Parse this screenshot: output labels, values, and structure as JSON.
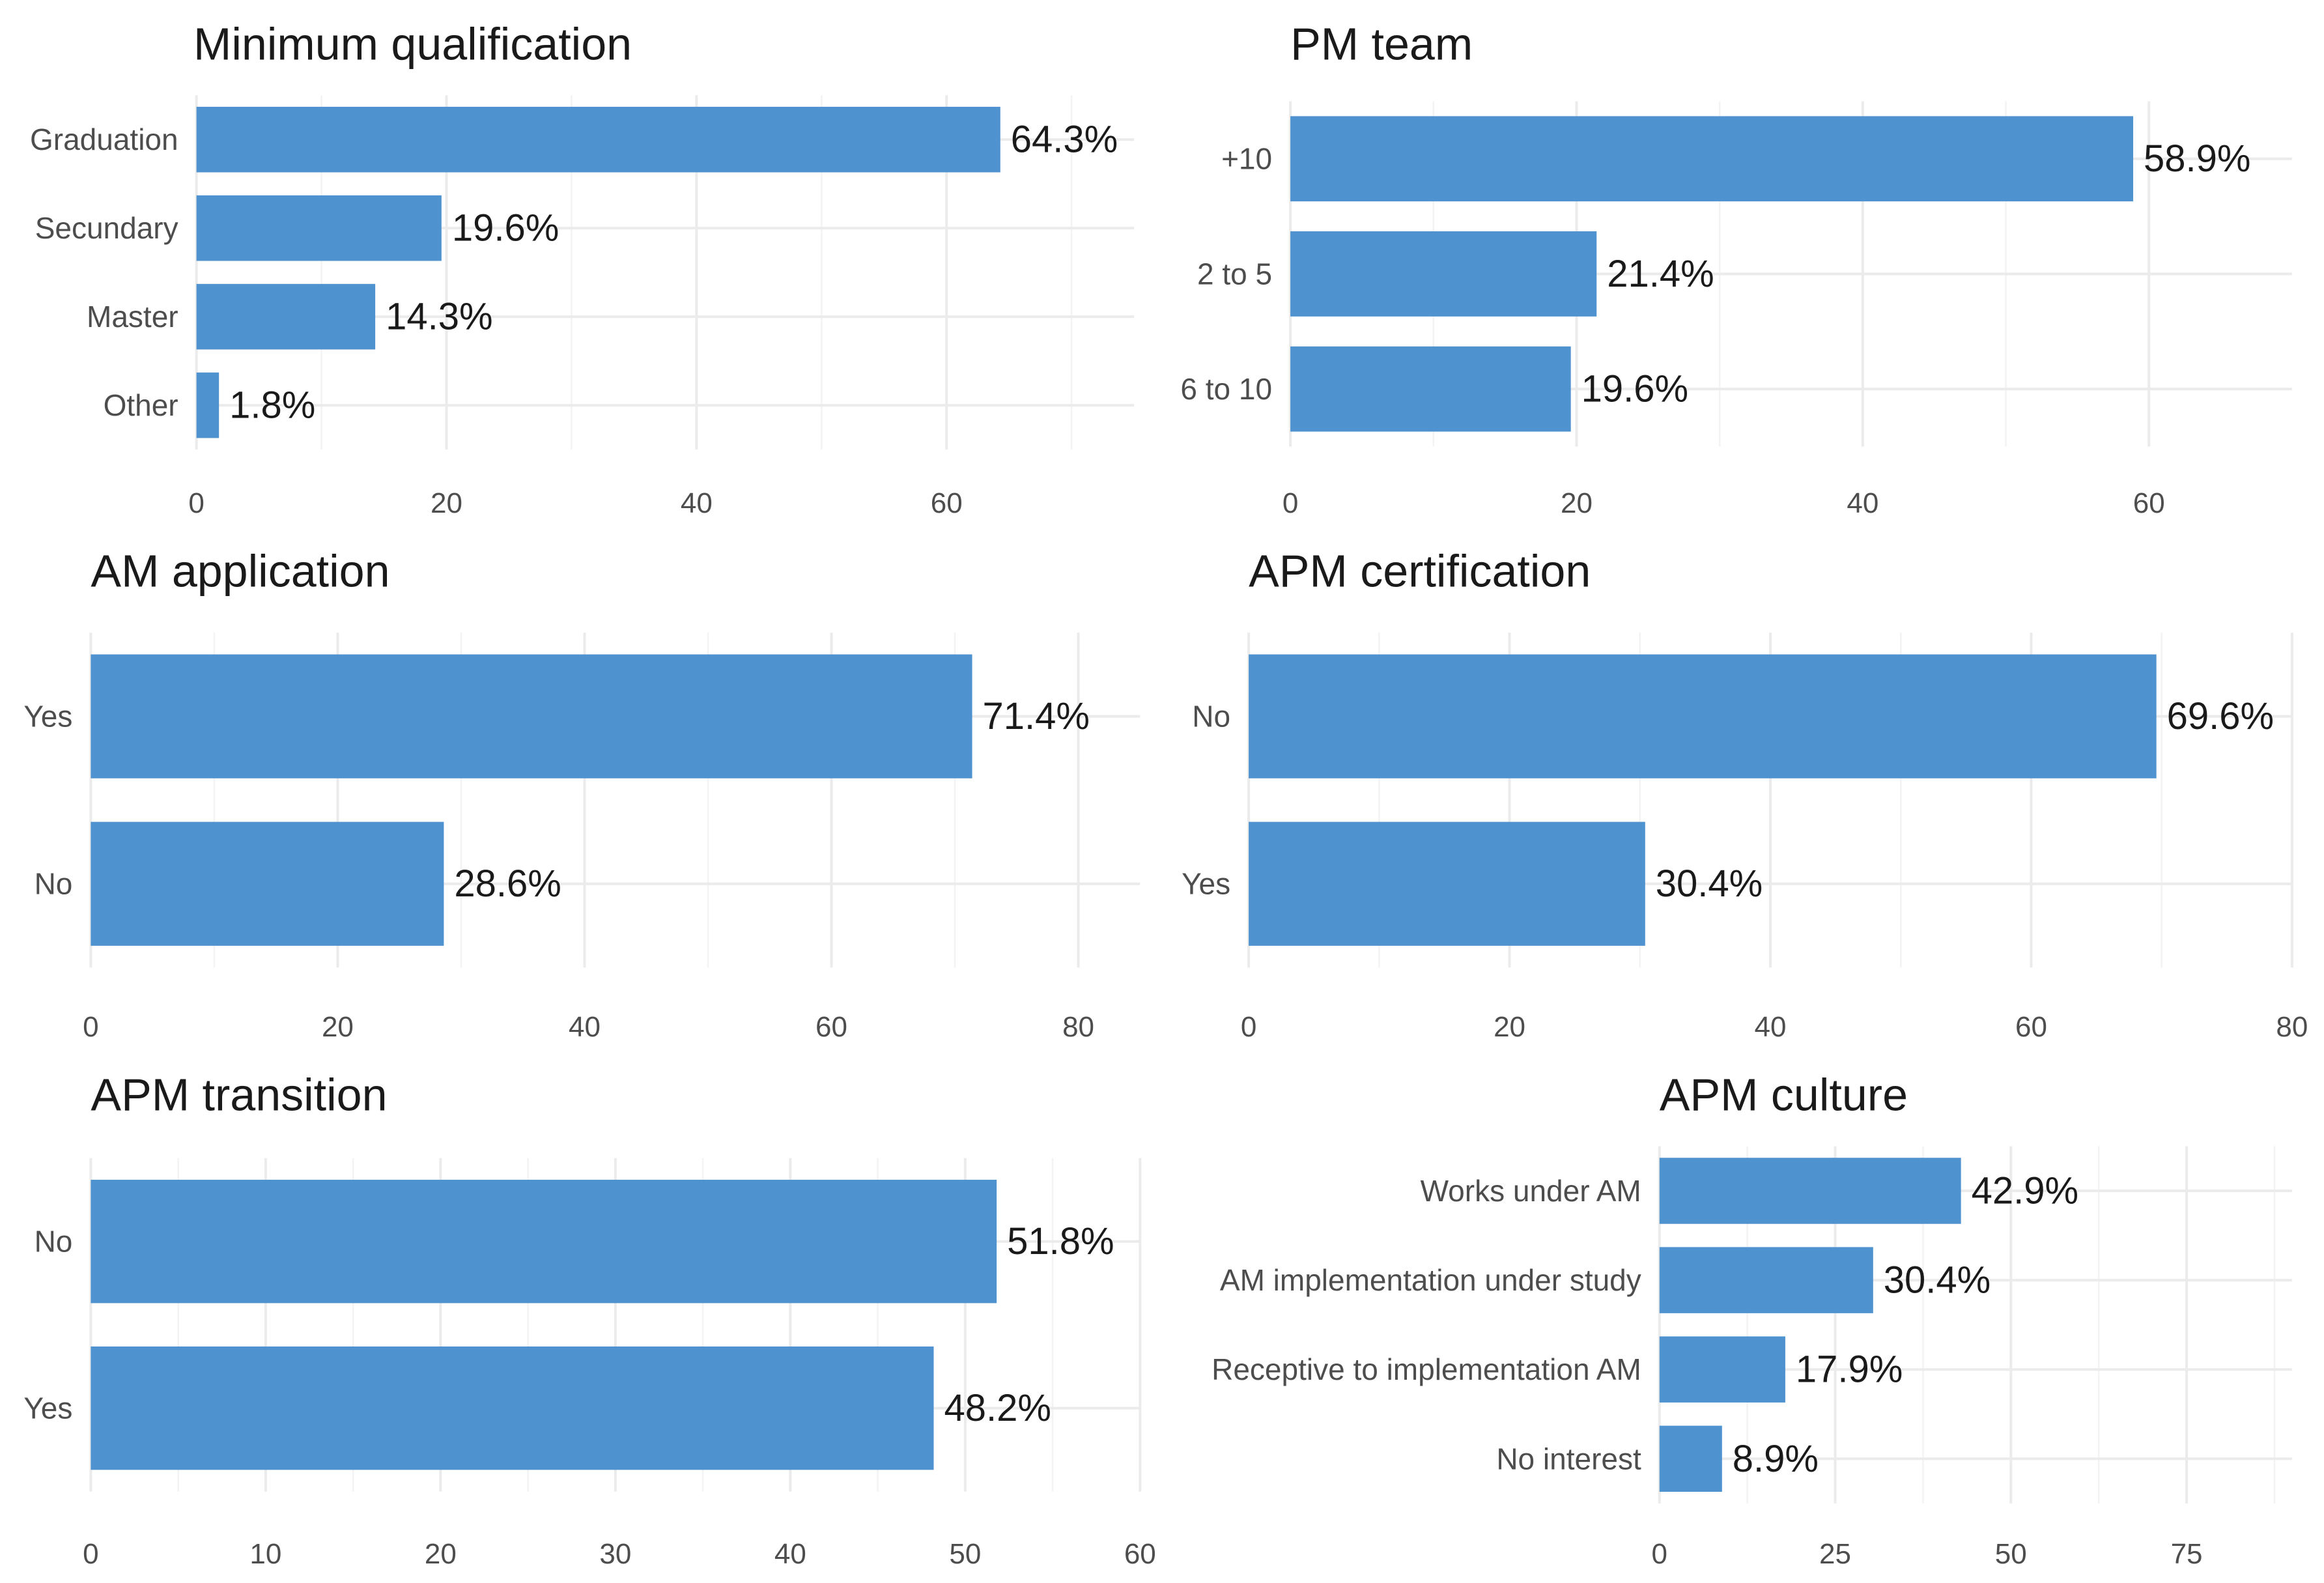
{
  "colors": {
    "bar": "#4f92d0",
    "grid_major": "#ebebeb",
    "grid_minor": "#f3f3f3",
    "text": "#1a1a1a",
    "axis_text": "#4d4d4d"
  },
  "chart_data": [
    {
      "type": "bar",
      "orientation": "horizontal",
      "title": "Minimum qualification",
      "categories": [
        "Graduation",
        "Secundary",
        "Master",
        "Other"
      ],
      "values": [
        64.3,
        19.6,
        14.3,
        1.8
      ],
      "labels": [
        "64.3%",
        "19.6%",
        "14.3%",
        "1.8%"
      ],
      "xlim": [
        0,
        75
      ],
      "ticks": [
        0,
        20,
        40,
        60
      ],
      "tick_labels": [
        "0",
        "20",
        "40",
        "60"
      ],
      "xlabel": "",
      "ylabel": "",
      "grid": true,
      "legend": "none"
    },
    {
      "type": "bar",
      "orientation": "horizontal",
      "title": "PM team",
      "categories": [
        "+10",
        "2 to 5",
        "6 to 10"
      ],
      "values": [
        58.9,
        21.4,
        19.6
      ],
      "labels": [
        "58.9%",
        "21.4%",
        "19.6%"
      ],
      "xlim": [
        0,
        70
      ],
      "ticks": [
        0,
        20,
        40,
        60
      ],
      "tick_labels": [
        "0",
        "20",
        "40",
        "60"
      ],
      "xlabel": "",
      "ylabel": "",
      "grid": true,
      "legend": "none"
    },
    {
      "type": "bar",
      "orientation": "horizontal",
      "title": "AM application",
      "categories": [
        "Yes",
        "No"
      ],
      "values": [
        71.4,
        28.6
      ],
      "labels": [
        "71.4%",
        "28.6%"
      ],
      "xlim": [
        0,
        85
      ],
      "ticks": [
        0,
        20,
        40,
        60,
        80
      ],
      "tick_labels": [
        "0",
        "20",
        "40",
        "60",
        "80"
      ],
      "xlabel": "",
      "ylabel": "",
      "grid": true,
      "legend": "none"
    },
    {
      "type": "bar",
      "orientation": "horizontal",
      "title": "APM certification",
      "categories": [
        "No",
        "Yes"
      ],
      "values": [
        69.6,
        30.4
      ],
      "labels": [
        "69.6%",
        "30.4%"
      ],
      "xlim": [
        0,
        80
      ],
      "ticks": [
        0,
        20,
        40,
        60,
        80
      ],
      "tick_labels": [
        "0",
        "20",
        "40",
        "60",
        "80"
      ],
      "xlabel": "",
      "ylabel": "",
      "grid": true,
      "legend": "none"
    },
    {
      "type": "bar",
      "orientation": "horizontal",
      "title": "APM transition",
      "categories": [
        "No",
        "Yes"
      ],
      "values": [
        51.8,
        48.2
      ],
      "labels": [
        "51.8%",
        "48.2%"
      ],
      "xlim": [
        0,
        60
      ],
      "ticks": [
        0,
        10,
        20,
        30,
        40,
        50,
        60
      ],
      "tick_labels": [
        "0",
        "10",
        "20",
        "30",
        "40",
        "50",
        "60"
      ],
      "xlabel": "",
      "ylabel": "",
      "grid": true,
      "legend": "none"
    },
    {
      "type": "bar",
      "orientation": "horizontal",
      "title": "APM culture",
      "categories": [
        "Works under AM",
        "AM implementation under study",
        "Receptive to implementation AM",
        "No interest"
      ],
      "values": [
        42.9,
        30.4,
        17.9,
        8.9
      ],
      "labels": [
        "42.9%",
        "30.4%",
        "17.9%",
        "8.9%"
      ],
      "xlim": [
        0,
        90
      ],
      "ticks": [
        0,
        25,
        50,
        75
      ],
      "tick_labels": [
        "0",
        "25",
        "50",
        "75"
      ],
      "xlabel": "",
      "ylabel": "",
      "grid": true,
      "legend": "none"
    }
  ]
}
